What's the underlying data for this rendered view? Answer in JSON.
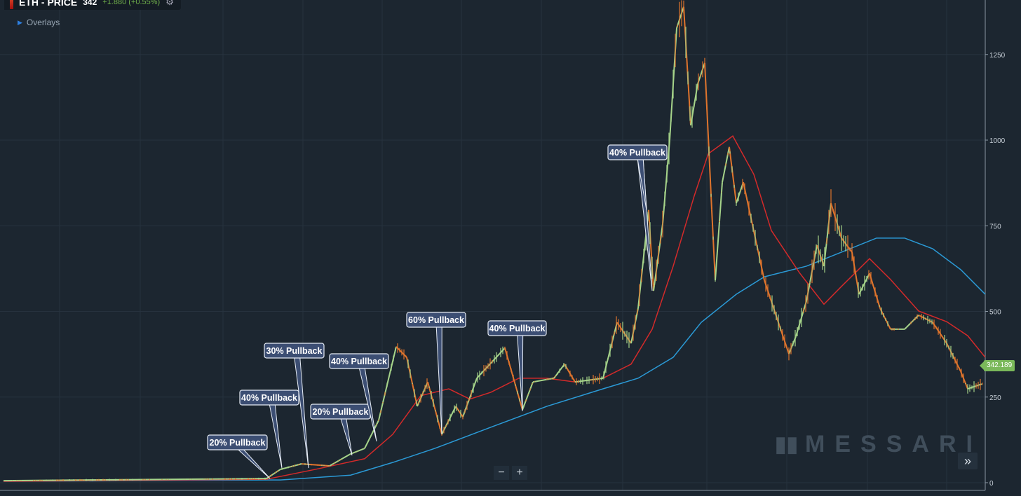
{
  "header": {
    "title": "ETH - PRICE",
    "value": "342",
    "change": "+1.880 (+0.55%)",
    "settings_icon": "gear-icon"
  },
  "overlays_label": "Overlays",
  "price_tag": "342.189",
  "logo_text": "MESSARI",
  "zoom": {
    "minus": "−",
    "plus": "+"
  },
  "more_button": "»",
  "colors": {
    "background": "#1c2630",
    "up": "#a6d48a",
    "down": "#e0742c",
    "ma_short": "#d42a2a",
    "ma_long": "#2b9ad6",
    "annotation": "#3c4e73",
    "price_tag": "#7ab85a"
  },
  "chart_data": {
    "type": "line",
    "ylim": [
      0,
      1400
    ],
    "yticks": [
      "0",
      "250",
      "500",
      "750",
      "1000",
      "1250"
    ],
    "grid": true,
    "series": [
      {
        "values": [
          6,
          12,
          39,
          55,
          49,
          84,
          100,
          182,
          397,
          366,
          223,
          294,
          141,
          223,
          192,
          305,
          393,
          213,
          294,
          305,
          346,
          294,
          305,
          468,
          407,
          509,
          796,
          560,
          755,
          1000,
          1327,
          1389,
          1043,
          1164,
          1225,
          796,
          591,
          877,
          980,
          816,
          877,
          734,
          591,
          468,
          376,
          427,
          530,
          693,
          632,
          816,
          714,
          673,
          550,
          611,
          509,
          448,
          448,
          489,
          468,
          407,
          325,
          274,
          288
        ]
      },
      {
        "values": [
          4,
          10,
          39,
          70,
          141,
          254,
          274,
          244,
          264,
          305,
          305,
          294,
          305,
          346,
          448,
          632,
          837,
          960,
          1012,
          900,
          736,
          613,
          521,
          573,
          654,
          593,
          501,
          470,
          429,
          366
        ]
      },
      {
        "values": [
          4,
          8,
          22,
          59,
          100,
          162,
          223,
          274,
          305,
          366,
          468,
          550,
          601,
          632,
          673,
          714,
          714,
          683,
          622,
          550
        ]
      }
    ],
    "annotations": [
      "20% Pullback",
      "40% Pullback",
      "30% Pullback",
      "20% Pullback",
      "40% Pullback",
      "60% Pullback",
      "40% Pullback",
      "40% Pullback"
    ]
  }
}
